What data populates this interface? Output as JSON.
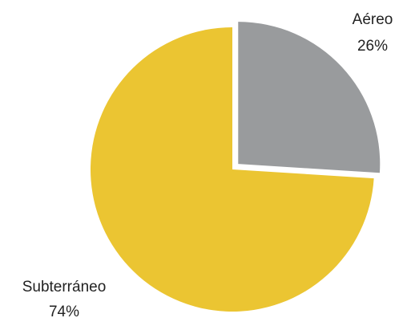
{
  "chart_data": {
    "type": "pie",
    "title": "",
    "slices": [
      {
        "label": "Aéreo",
        "value": 26,
        "value_label": "26%",
        "color": "#999b9d",
        "exploded": true
      },
      {
        "label": "Subterráneo",
        "value": 74,
        "value_label": "74%",
        "color": "#ebc532",
        "exploded": false
      }
    ],
    "start_angle_deg": 0,
    "direction": "clockwise",
    "legend": "none"
  }
}
